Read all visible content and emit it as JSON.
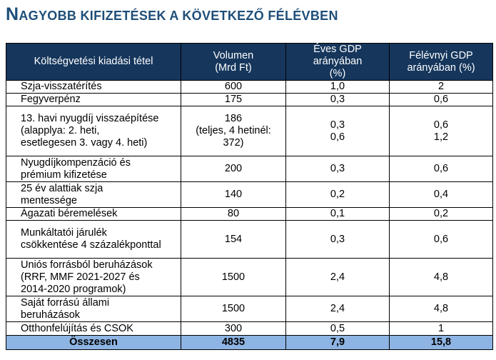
{
  "title": {
    "cap1": "N",
    "rest1": "AGYOBB KIFIZETÉSEK A KÖVETKEZŐ FÉLÉVBEN"
  },
  "headers": {
    "item": "Költségvetési kiadási tétel",
    "volume_1": "Volumen",
    "volume_2": "(Mrd Ft)",
    "annual_1": "Éves GDP arányában",
    "annual_2": "(%)",
    "half_1": "Félévnyi GDP",
    "half_2": "arányában (%)"
  },
  "rows": [
    {
      "item": [
        "Szja-visszatérítés"
      ],
      "volume": [
        "600"
      ],
      "annual": [
        "1,0"
      ],
      "half": [
        "2"
      ]
    },
    {
      "item": [
        "Fegyverpénz"
      ],
      "volume": [
        "175"
      ],
      "annual": [
        "0,3"
      ],
      "half": [
        "0,6"
      ]
    },
    {
      "item": [
        "13. havi nyugdíj visszaépítése",
        "(alapplya: 2. heti,",
        "esetlegesen 3. vagy 4. heti)"
      ],
      "volume": [
        "186",
        "(teljes, 4 hetinél: 372)"
      ],
      "annual": [
        "0,3",
        "0,6"
      ],
      "half": [
        "0,6",
        "1,2"
      ]
    },
    {
      "item": [
        "Nyugdíjkompenzáció és",
        "prémium kifizetése"
      ],
      "volume": [
        "200"
      ],
      "annual": [
        "0,3"
      ],
      "half": [
        "0,6"
      ]
    },
    {
      "item": [
        "25 év alattiak szja",
        "mentessége"
      ],
      "volume": [
        "140"
      ],
      "annual": [
        "0,2"
      ],
      "half": [
        "0,4"
      ]
    },
    {
      "item": [
        "Ágazati béremelések"
      ],
      "volume": [
        "80"
      ],
      "annual": [
        "0,1"
      ],
      "half": [
        "0,2"
      ]
    },
    {
      "item": [
        "Munkáltatói járulék",
        "csökkentése 4 százalékponttal"
      ],
      "volume": [
        "154"
      ],
      "annual": [
        "0,3"
      ],
      "half": [
        "0,6"
      ]
    },
    {
      "item": [
        "Uniós forrásból beruházások",
        "(RRF, MMF 2021-2027 és",
        "2014-2020 programok)"
      ],
      "volume": [
        "1500"
      ],
      "annual": [
        "2,4"
      ],
      "half": [
        "4,8"
      ]
    },
    {
      "item": [
        "Saját forrású állami",
        "beruházások"
      ],
      "volume": [
        "1500"
      ],
      "annual": [
        "2,4"
      ],
      "half": [
        "4,8"
      ]
    },
    {
      "item": [
        "Otthonfelújítás és CSOK"
      ],
      "volume": [
        "300"
      ],
      "annual": [
        "0,5"
      ],
      "half": [
        "1"
      ]
    }
  ],
  "total": {
    "label": "Összesen",
    "volume": "4835",
    "annual": "7,9",
    "half": "15,8"
  }
}
